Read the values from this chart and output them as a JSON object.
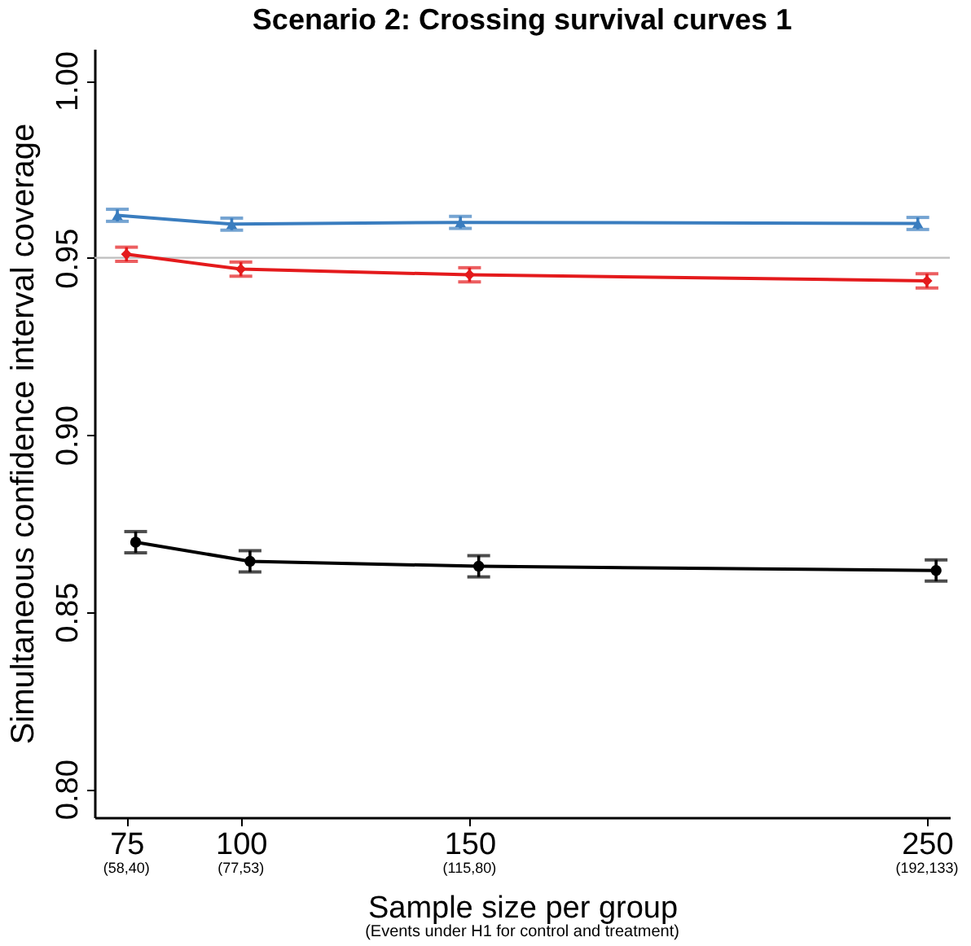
{
  "chart_data": {
    "type": "line",
    "title": "Scenario 2: Crossing survival curves 1",
    "xlabel": "Sample size per group",
    "ylabel": "Simultaneous confidence interval coverage",
    "annotations": [
      "(Events under H1 for control and treatment)",
      "(58,40)",
      "(77,53)",
      "(115,80)",
      "(192,133)"
    ],
    "xlim": [
      68,
      255
    ],
    "xticks": [
      75,
      100,
      150,
      250
    ],
    "ylim": [
      0.792,
      1.009
    ],
    "yticks": [
      {
        "value": 0.8,
        "label": "0.80"
      },
      {
        "value": 0.85,
        "label": "0.85"
      },
      {
        "value": 0.9,
        "label": "0.90"
      },
      {
        "value": 0.95,
        "label": "0.95"
      },
      {
        "value": 1.0,
        "label": "1.00"
      }
    ],
    "grid": false,
    "ref_lines": [
      {
        "axis": "y",
        "value": 0.95,
        "color": "#bebebe"
      }
    ],
    "series": [
      {
        "color": "#3a7dbf",
        "marker": "triangle",
        "x": [
          73,
          98,
          148,
          248
        ],
        "values": [
          0.962,
          0.9595,
          0.96,
          0.9597
        ],
        "errors": [
          0.0017,
          0.0017,
          0.0017,
          0.0017
        ]
      },
      {
        "color": "#e41a1c",
        "marker": "diamond",
        "x": [
          75,
          100,
          150,
          250
        ],
        "values": [
          0.951,
          0.9468,
          0.9452,
          0.9435
        ],
        "errors": [
          0.002,
          0.002,
          0.002,
          0.002
        ]
      },
      {
        "color": "#000000",
        "marker": "circle",
        "x": [
          77,
          102,
          152,
          252
        ],
        "values": [
          0.8697,
          0.8643,
          0.8629,
          0.8617
        ],
        "errors": [
          0.003,
          0.003,
          0.003,
          0.003
        ]
      }
    ]
  }
}
